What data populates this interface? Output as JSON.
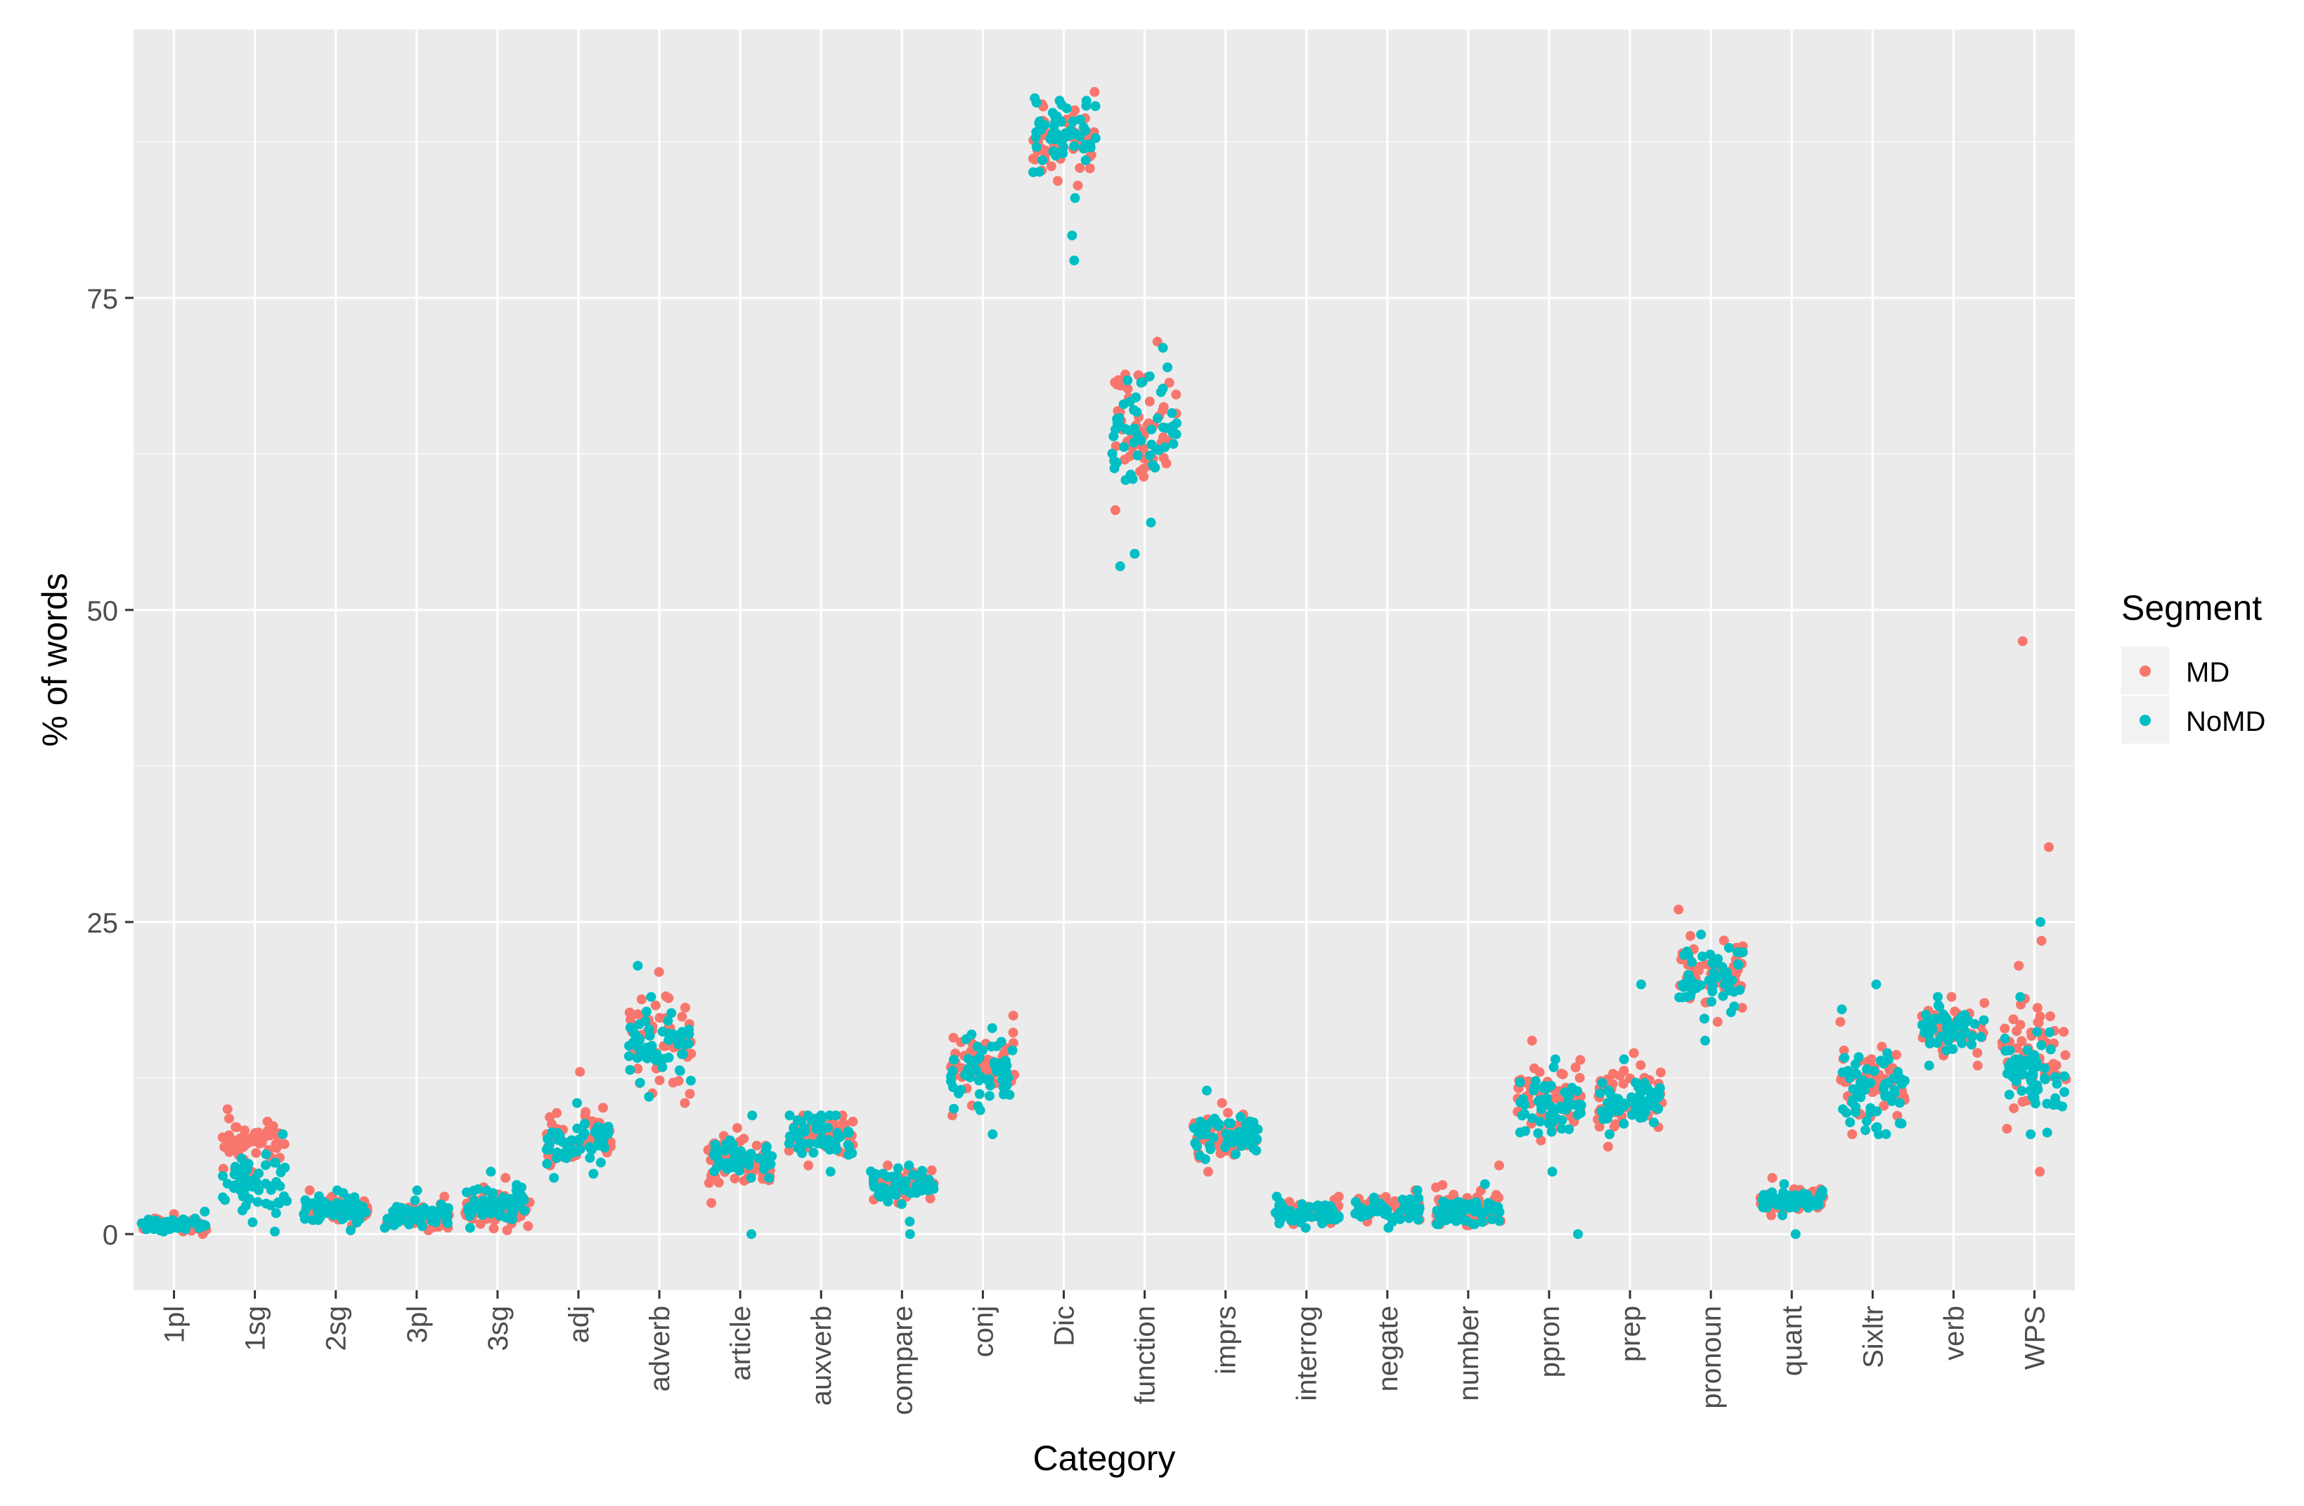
{
  "chart_data": {
    "type": "scatter",
    "subtype": "jitter-strip",
    "title": "",
    "xlabel": "Category",
    "ylabel": "% of words",
    "ylim": [
      -4.5,
      96.5
    ],
    "yticks": [
      0,
      25,
      50,
      75
    ],
    "ytick_labels": [
      "0",
      "25",
      "50",
      "75"
    ],
    "grid": true,
    "legend_position": "right",
    "legend_title": "Segment",
    "categories": [
      "1pl",
      "1sg",
      "2sg",
      "3pl",
      "3sg",
      "adj",
      "adverb",
      "article",
      "auxverb",
      "compare",
      "conj",
      "Dic",
      "function",
      "imprs",
      "interrog",
      "negate",
      "number",
      "ppron",
      "prep",
      "pronoun",
      "quant",
      "Sixltr",
      "verb",
      "WPS"
    ],
    "series": [
      {
        "name": "MD",
        "color": "#F8766D",
        "summary": [
          {
            "category": "1pl",
            "center": 0.7,
            "min": 0.0,
            "max": 1.6
          },
          {
            "category": "1sg",
            "center": 7.5,
            "min": 5.0,
            "max": 10.0
          },
          {
            "category": "2sg",
            "center": 2.0,
            "min": 0.7,
            "max": 3.5
          },
          {
            "category": "3pl",
            "center": 1.3,
            "min": 0.3,
            "max": 3.0
          },
          {
            "category": "3sg",
            "center": 2.0,
            "min": 0.3,
            "max": 4.5
          },
          {
            "category": "adj",
            "center": 7.8,
            "min": 5.5,
            "max": 13.0
          },
          {
            "category": "adverb",
            "center": 15.5,
            "min": 10.5,
            "max": 21.0
          },
          {
            "category": "article",
            "center": 5.8,
            "min": 2.5,
            "max": 8.5
          },
          {
            "category": "auxverb",
            "center": 7.8,
            "min": 5.5,
            "max": 9.5
          },
          {
            "category": "compare",
            "center": 4.0,
            "min": 2.5,
            "max": 5.5
          },
          {
            "category": "conj",
            "center": 13.5,
            "min": 9.5,
            "max": 17.5
          },
          {
            "category": "Dic",
            "center": 88.0,
            "min": 84.0,
            "max": 91.5
          },
          {
            "category": "function",
            "center": 65.0,
            "min": 58.0,
            "max": 71.5
          },
          {
            "category": "imprs",
            "center": 8.0,
            "min": 5.0,
            "max": 10.5
          },
          {
            "category": "interrog",
            "center": 1.8,
            "min": 0.8,
            "max": 3.0
          },
          {
            "category": "negate",
            "center": 2.2,
            "min": 1.0,
            "max": 3.5
          },
          {
            "category": "number",
            "center": 2.0,
            "min": 0.7,
            "max": 5.5
          },
          {
            "category": "ppron",
            "center": 11.0,
            "min": 7.5,
            "max": 15.5
          },
          {
            "category": "prep",
            "center": 11.0,
            "min": 7.0,
            "max": 14.5
          },
          {
            "category": "pronoun",
            "center": 21.0,
            "min": 17.0,
            "max": 26.0
          },
          {
            "category": "quant",
            "center": 2.8,
            "min": 1.5,
            "max": 4.5
          },
          {
            "category": "Sixltr",
            "center": 12.0,
            "min": 8.0,
            "max": 17.0
          },
          {
            "category": "verb",
            "center": 16.5,
            "min": 13.5,
            "max": 19.0
          },
          {
            "category": "WPS",
            "center": 14.0,
            "min": 5.0,
            "max": 21.5
          }
        ],
        "outliers": [
          {
            "category": "WPS",
            "y": 47.5
          },
          {
            "category": "WPS",
            "y": 31.0
          },
          {
            "category": "WPS",
            "y": 23.5
          }
        ]
      },
      {
        "name": "NoMD",
        "color": "#00BFC4",
        "summary": [
          {
            "category": "1pl",
            "center": 0.8,
            "min": 0.2,
            "max": 1.8
          },
          {
            "category": "1sg",
            "center": 4.0,
            "min": 0.2,
            "max": 8.0
          },
          {
            "category": "2sg",
            "center": 2.0,
            "min": 0.3,
            "max": 3.5
          },
          {
            "category": "3pl",
            "center": 1.5,
            "min": 0.5,
            "max": 3.5
          },
          {
            "category": "3sg",
            "center": 2.5,
            "min": 0.5,
            "max": 5.0
          },
          {
            "category": "adj",
            "center": 7.5,
            "min": 4.5,
            "max": 10.5
          },
          {
            "category": "adverb",
            "center": 15.0,
            "min": 11.0,
            "max": 19.0
          },
          {
            "category": "article",
            "center": 6.0,
            "min": 4.5,
            "max": 9.5
          },
          {
            "category": "auxverb",
            "center": 8.0,
            "min": 5.0,
            "max": 9.5
          },
          {
            "category": "compare",
            "center": 3.8,
            "min": 1.0,
            "max": 5.5
          },
          {
            "category": "conj",
            "center": 13.0,
            "min": 8.0,
            "max": 16.5
          },
          {
            "category": "Dic",
            "center": 88.0,
            "min": 83.0,
            "max": 91.0
          },
          {
            "category": "function",
            "center": 64.5,
            "min": 57.0,
            "max": 71.0
          },
          {
            "category": "imprs",
            "center": 8.0,
            "min": 6.0,
            "max": 11.5
          },
          {
            "category": "interrog",
            "center": 1.7,
            "min": 0.5,
            "max": 3.0
          },
          {
            "category": "negate",
            "center": 2.0,
            "min": 0.5,
            "max": 3.5
          },
          {
            "category": "number",
            "center": 1.8,
            "min": 0.8,
            "max": 4.0
          },
          {
            "category": "ppron",
            "center": 10.5,
            "min": 5.0,
            "max": 14.0
          },
          {
            "category": "prep",
            "center": 10.5,
            "min": 8.0,
            "max": 14.0
          },
          {
            "category": "pronoun",
            "center": 20.5,
            "min": 15.5,
            "max": 24.0
          },
          {
            "category": "quant",
            "center": 2.7,
            "min": 1.5,
            "max": 4.0
          },
          {
            "category": "Sixltr",
            "center": 11.5,
            "min": 8.0,
            "max": 18.0
          },
          {
            "category": "verb",
            "center": 16.5,
            "min": 13.5,
            "max": 19.0
          },
          {
            "category": "WPS",
            "center": 13.0,
            "min": 8.0,
            "max": 19.0
          }
        ],
        "outliers": [
          {
            "category": "Dic",
            "y": 80.0
          },
          {
            "category": "Dic",
            "y": 78.0
          },
          {
            "category": "function",
            "y": 53.5
          },
          {
            "category": "function",
            "y": 54.5
          },
          {
            "category": "ppron",
            "y": 0.0
          },
          {
            "category": "prep",
            "y": 20.0
          },
          {
            "category": "quant",
            "y": 0.0
          },
          {
            "category": "compare",
            "y": 0.0
          },
          {
            "category": "article",
            "y": 0.0
          },
          {
            "category": "adverb",
            "y": 21.5
          },
          {
            "category": "Sixltr",
            "y": 20.0
          },
          {
            "category": "WPS",
            "y": 25.0
          }
        ]
      }
    ],
    "points_per_series_per_category": 55
  }
}
